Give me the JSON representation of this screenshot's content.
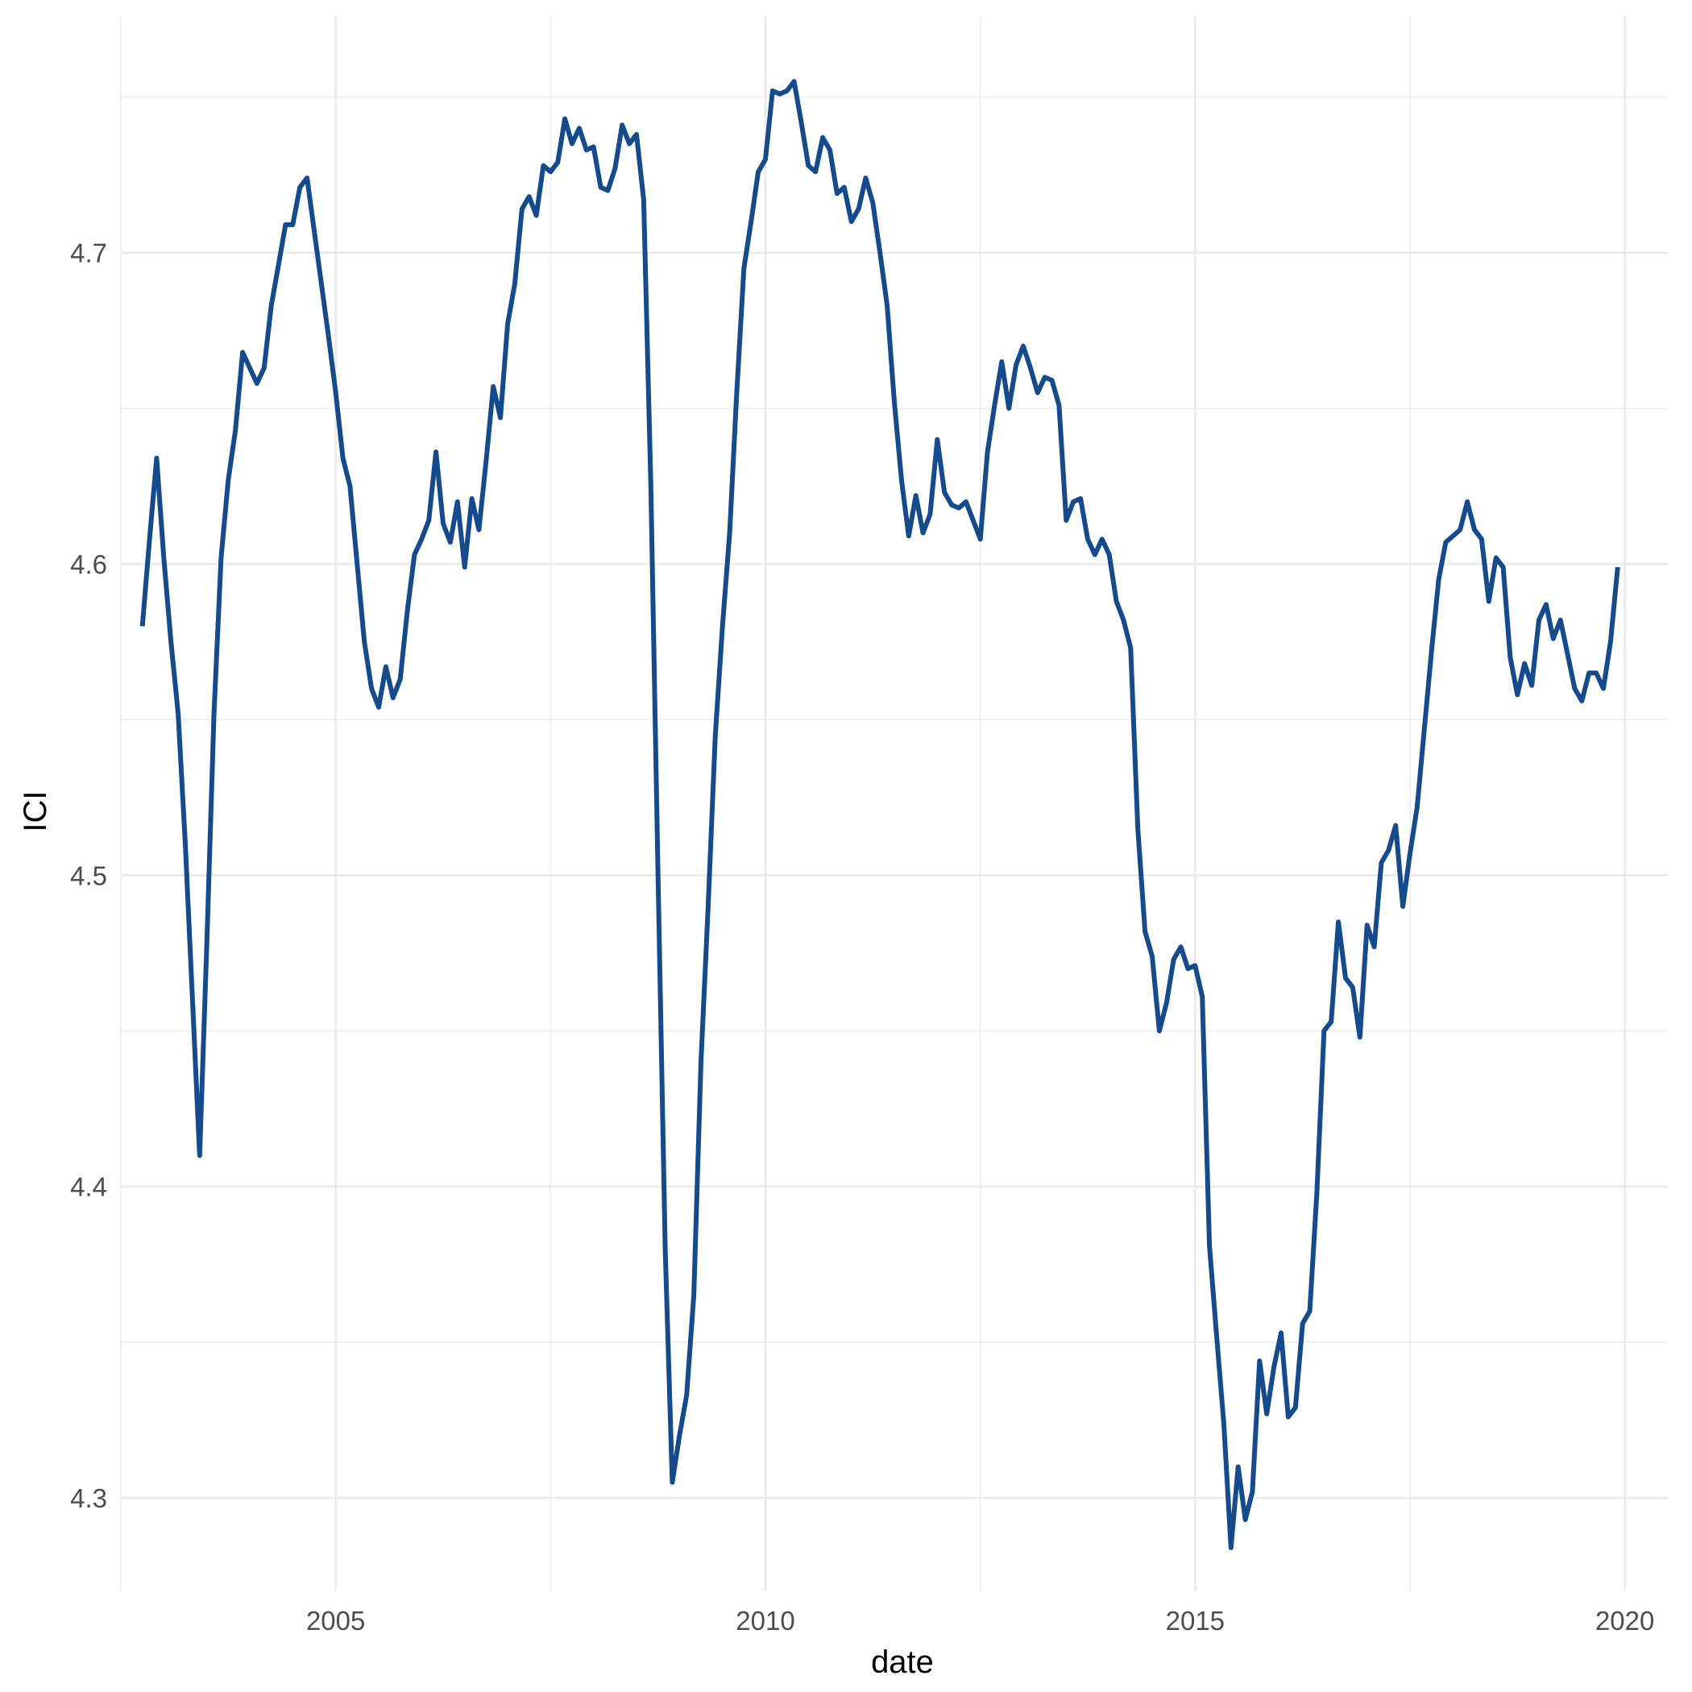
{
  "chart_data": {
    "type": "line",
    "title": "",
    "xlabel": "date",
    "ylabel": "ICI",
    "x_is_date": true,
    "xlim": [
      2002.5,
      2020.5
    ],
    "ylim": [
      4.27,
      4.776
    ],
    "x_ticks": [
      2005,
      2010,
      2015,
      2020
    ],
    "x_tick_labels": [
      "2005",
      "2010",
      "2015",
      "2020"
    ],
    "y_ticks": [
      4.3,
      4.4,
      4.5,
      4.6,
      4.7
    ],
    "y_tick_labels": [
      "4.3",
      "4.4",
      "4.5",
      "4.6",
      "4.7"
    ],
    "grid": true,
    "legend": "none",
    "series": [
      {
        "color": "#154b8c",
        "x": [
          "2002-10",
          "2002-11",
          "2002-12",
          "2003-01",
          "2003-02",
          "2003-03",
          "2003-04",
          "2003-05",
          "2003-06",
          "2003-07",
          "2003-08",
          "2003-09",
          "2003-10",
          "2003-11",
          "2003-12",
          "2004-01",
          "2004-02",
          "2004-03",
          "2004-04",
          "2004-05",
          "2004-06",
          "2004-07",
          "2004-08",
          "2004-09",
          "2004-10",
          "2004-11",
          "2004-12",
          "2005-01",
          "2005-02",
          "2005-03",
          "2005-04",
          "2005-05",
          "2005-06",
          "2005-07",
          "2005-08",
          "2005-09",
          "2005-10",
          "2005-11",
          "2005-12",
          "2006-01",
          "2006-02",
          "2006-03",
          "2006-04",
          "2006-05",
          "2006-06",
          "2006-07",
          "2006-08",
          "2006-09",
          "2006-10",
          "2006-11",
          "2006-12",
          "2007-01",
          "2007-02",
          "2007-03",
          "2007-04",
          "2007-05",
          "2007-06",
          "2007-07",
          "2007-08",
          "2007-09",
          "2007-10",
          "2007-11",
          "2007-12",
          "2008-01",
          "2008-02",
          "2008-03",
          "2008-04",
          "2008-05",
          "2008-06",
          "2008-07",
          "2008-08",
          "2008-09",
          "2008-10",
          "2008-11",
          "2008-12",
          "2009-01",
          "2009-02",
          "2009-03",
          "2009-04",
          "2009-05",
          "2009-06",
          "2009-07",
          "2009-08",
          "2009-09",
          "2009-10",
          "2009-11",
          "2009-12",
          "2010-01",
          "2010-02",
          "2010-03",
          "2010-04",
          "2010-05",
          "2010-06",
          "2010-07",
          "2010-08",
          "2010-09",
          "2010-10",
          "2010-11",
          "2010-12",
          "2011-01",
          "2011-02",
          "2011-03",
          "2011-04",
          "2011-05",
          "2011-06",
          "2011-07",
          "2011-08",
          "2011-09",
          "2011-10",
          "2011-11",
          "2011-12",
          "2012-01",
          "2012-02",
          "2012-03",
          "2012-04",
          "2012-05",
          "2012-06",
          "2012-07",
          "2012-08",
          "2012-09",
          "2012-10",
          "2012-11",
          "2012-12",
          "2013-01",
          "2013-02",
          "2013-03",
          "2013-04",
          "2013-05",
          "2013-06",
          "2013-07",
          "2013-08",
          "2013-09",
          "2013-10",
          "2013-11",
          "2013-12",
          "2014-01",
          "2014-02",
          "2014-03",
          "2014-04",
          "2014-05",
          "2014-06",
          "2014-07",
          "2014-08",
          "2014-09",
          "2014-10",
          "2014-11",
          "2014-12",
          "2015-01",
          "2015-02",
          "2015-03",
          "2015-04",
          "2015-05",
          "2015-06",
          "2015-07",
          "2015-08",
          "2015-09",
          "2015-10",
          "2015-11",
          "2015-12",
          "2016-01",
          "2016-02",
          "2016-03",
          "2016-04",
          "2016-05",
          "2016-06",
          "2016-07",
          "2016-08",
          "2016-09",
          "2016-10",
          "2016-11",
          "2016-12",
          "2017-01",
          "2017-02",
          "2017-03",
          "2017-04",
          "2017-05",
          "2017-06",
          "2017-07",
          "2017-08",
          "2017-09",
          "2017-10",
          "2017-11",
          "2017-12",
          "2018-01",
          "2018-02",
          "2018-03",
          "2018-04",
          "2018-05",
          "2018-06",
          "2018-07",
          "2018-08",
          "2018-09",
          "2018-10",
          "2018-11",
          "2018-12",
          "2019-01",
          "2019-02",
          "2019-03",
          "2019-04",
          "2019-05",
          "2019-06",
          "2019-07",
          "2019-08",
          "2019-09",
          "2019-10",
          "2019-11",
          "2019-12"
        ],
        "values": [
          4.58,
          4.608,
          4.634,
          4.602,
          4.575,
          4.552,
          4.51,
          4.46,
          4.41,
          4.478,
          4.552,
          4.602,
          4.627,
          4.643,
          4.668,
          4.663,
          4.658,
          4.663,
          4.683,
          4.696,
          4.709,
          4.709,
          4.721,
          4.724,
          4.707,
          4.69,
          4.673,
          4.655,
          4.634,
          4.625,
          4.6,
          4.575,
          4.56,
          4.554,
          4.567,
          4.557,
          4.563,
          4.585,
          4.603,
          4.608,
          4.614,
          4.636,
          4.613,
          4.607,
          4.62,
          4.599,
          4.621,
          4.611,
          4.633,
          4.657,
          4.647,
          4.677,
          4.69,
          4.714,
          4.718,
          4.712,
          4.728,
          4.726,
          4.729,
          4.743,
          4.735,
          4.74,
          4.733,
          4.734,
          4.721,
          4.72,
          4.727,
          4.741,
          4.735,
          4.738,
          4.717,
          4.625,
          4.5,
          4.38,
          4.305,
          4.32,
          4.333,
          4.365,
          4.44,
          4.49,
          4.545,
          4.58,
          4.61,
          4.655,
          4.695,
          4.71,
          4.726,
          4.73,
          4.752,
          4.751,
          4.752,
          4.755,
          4.742,
          4.728,
          4.726,
          4.737,
          4.733,
          4.719,
          4.721,
          4.71,
          4.714,
          4.724,
          4.716,
          4.7,
          4.683,
          4.652,
          4.627,
          4.609,
          4.622,
          4.61,
          4.616,
          4.64,
          4.623,
          4.619,
          4.618,
          4.62,
          4.614,
          4.608,
          4.636,
          4.651,
          4.665,
          4.65,
          4.664,
          4.67,
          4.663,
          4.655,
          4.66,
          4.659,
          4.651,
          4.614,
          4.62,
          4.621,
          4.608,
          4.603,
          4.608,
          4.603,
          4.588,
          4.582,
          4.573,
          4.515,
          4.482,
          4.474,
          4.45,
          4.459,
          4.473,
          4.477,
          4.47,
          4.471,
          4.461,
          4.381,
          4.352,
          4.324,
          4.284,
          4.31,
          4.293,
          4.302,
          4.344,
          4.327,
          4.342,
          4.353,
          4.326,
          4.329,
          4.356,
          4.36,
          4.398,
          4.45,
          4.453,
          4.485,
          4.467,
          4.464,
          4.448,
          4.484,
          4.477,
          4.504,
          4.508,
          4.516,
          4.49,
          4.507,
          4.522,
          4.547,
          4.572,
          4.595,
          4.607,
          4.609,
          4.611,
          4.62,
          4.611,
          4.608,
          4.588,
          4.602,
          4.599,
          4.57,
          4.558,
          4.568,
          4.561,
          4.582,
          4.587,
          4.576,
          4.582,
          4.571,
          4.56,
          4.556,
          4.565,
          4.565,
          4.56,
          4.575,
          4.599
        ]
      }
    ]
  }
}
